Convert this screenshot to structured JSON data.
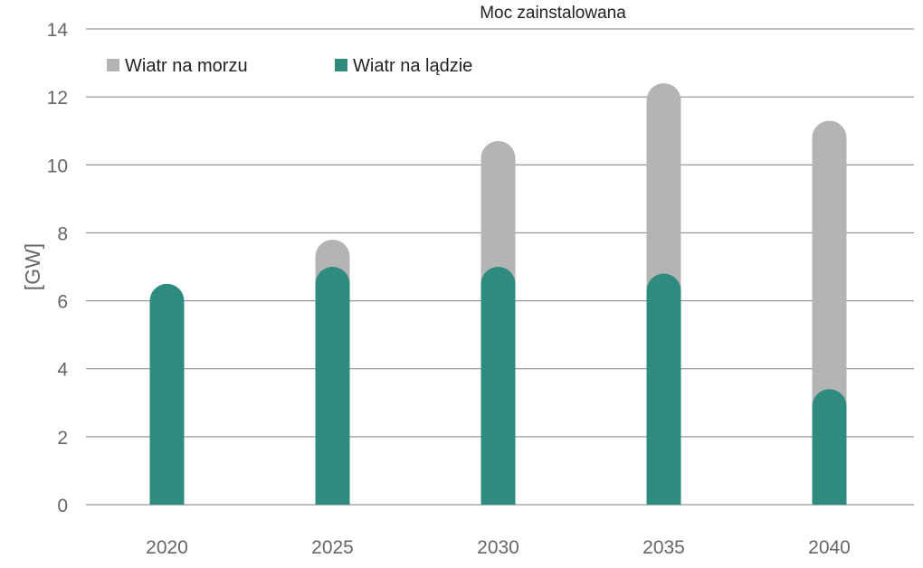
{
  "chart_data": {
    "type": "bar",
    "stacked": true,
    "title": "Moc zainstalowana",
    "ylabel": "[GW]",
    "xlabel": "",
    "categories": [
      "2020",
      "2025",
      "2030",
      "2035",
      "2040"
    ],
    "ylim": [
      0,
      14
    ],
    "yticks": [
      0,
      2,
      4,
      6,
      8,
      10,
      12,
      14
    ],
    "grid": true,
    "legend_position": "top-left",
    "series": [
      {
        "name": "Wiatr na lądzie",
        "color": "#2e8b7e",
        "values": [
          6.5,
          7.0,
          7.0,
          6.8,
          3.4
        ]
      },
      {
        "name": "Wiatr na morzu",
        "color": "#b4b4b4",
        "values": [
          0.0,
          0.8,
          3.7,
          5.6,
          7.9
        ]
      }
    ],
    "legend": [
      "Wiatr na morzu",
      "Wiatr na lądzie"
    ]
  }
}
